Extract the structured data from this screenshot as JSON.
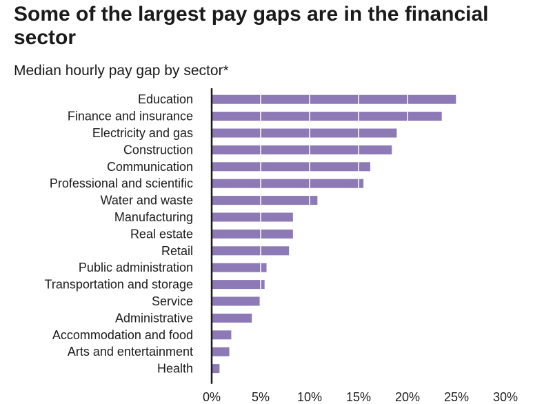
{
  "title": "Some of the largest pay gaps are in the financial sector",
  "subtitle": "Median hourly pay gap by sector*",
  "colors": {
    "bar": "#8c79b5",
    "axis": "#1a1a1a",
    "grid": "#ffffff"
  },
  "chart_data": {
    "type": "bar",
    "orientation": "horizontal",
    "categories": [
      "Education",
      "Finance and insurance",
      "Electricity and gas",
      "Construction",
      "Communication",
      "Professional and scientific",
      "Water and waste",
      "Manufacturing",
      "Real estate",
      "Retail",
      "Public administration",
      "Transportation and storage",
      "Service",
      "Administrative",
      "Accommodation and food",
      "Arts and entertainment",
      "Health"
    ],
    "values": [
      25.0,
      23.5,
      18.9,
      18.4,
      16.2,
      15.5,
      10.8,
      8.3,
      8.3,
      7.9,
      5.6,
      5.4,
      4.9,
      4.1,
      2.0,
      1.8,
      0.8
    ],
    "xlim": [
      0,
      30
    ],
    "xticks": [
      0,
      5,
      10,
      15,
      20,
      25,
      30
    ],
    "xtick_labels": [
      "0%",
      "5%",
      "10%",
      "15%",
      "20%",
      "25%",
      "30%"
    ],
    "xlabel": "",
    "ylabel": "",
    "grid": true
  }
}
